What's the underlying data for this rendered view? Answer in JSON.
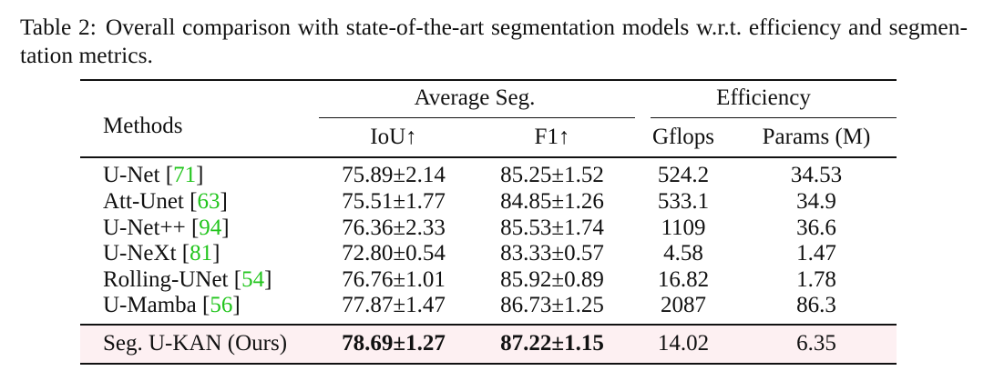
{
  "caption": {
    "label": "Table 2:",
    "text": "Overall comparison with state-of-the-art segmentation models w.r.t. efficiency and segmen-tation metrics."
  },
  "headers": {
    "methods": "Methods",
    "group_avg": "Average Seg.",
    "group_eff": "Efficiency",
    "iou": "IoU↑",
    "f1": "F1↑",
    "gflops": "Gflops",
    "params": "Params (M)"
  },
  "rows": [
    {
      "method": "U-Net",
      "cite": "71",
      "iou": "75.89±2.14",
      "f1": "85.25±1.52",
      "gflops": "524.2",
      "params": "34.53"
    },
    {
      "method": "Att-Unet",
      "cite": "63",
      "iou": "75.51±1.77",
      "f1": "84.85±1.26",
      "gflops": "533.1",
      "params": "34.9"
    },
    {
      "method": "U-Net++",
      "cite": "94",
      "iou": "76.36±2.33",
      "f1": "85.53±1.74",
      "gflops": "1109",
      "params": "36.6"
    },
    {
      "method": "U-NeXt",
      "cite": "81",
      "iou": "72.80±0.54",
      "f1": "83.33±0.57",
      "gflops": "4.58",
      "params": "1.47"
    },
    {
      "method": "Rolling-UNet",
      "cite": "54",
      "iou": "76.76±1.01",
      "f1": "85.92±0.89",
      "gflops": "16.82",
      "params": "1.78"
    },
    {
      "method": "U-Mamba",
      "cite": "56",
      "iou": "77.87±1.47",
      "f1": "86.73±1.25",
      "gflops": "2087",
      "params": "86.3"
    }
  ],
  "ours": {
    "method": "Seg. U-KAN (Ours)",
    "iou": "78.69±1.27",
    "f1": "87.22±1.15",
    "gflops": "14.02",
    "params": "6.35"
  },
  "colors": {
    "citation": "#22c51d",
    "highlight_row": "#fdf0f2"
  }
}
